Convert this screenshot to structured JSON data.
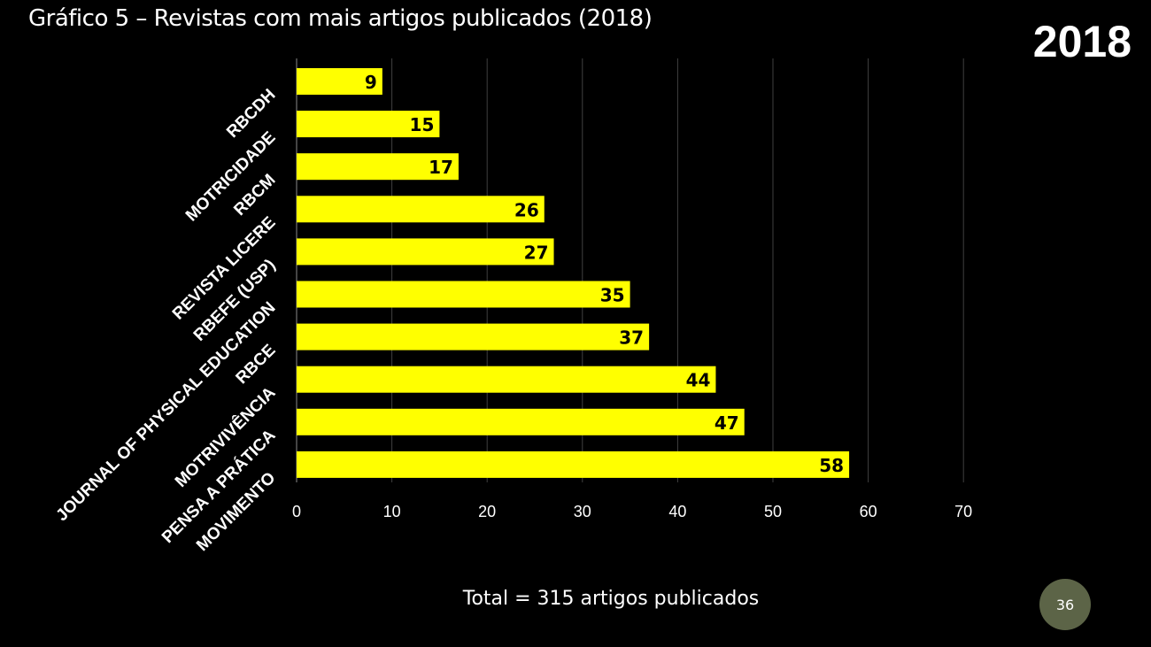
{
  "slide": {
    "title": "Gráfico 5 – Revistas com mais artigos publicados (2018)",
    "year_badge": "2018",
    "total_note": "Total = 315 artigos publicados",
    "page_number": "36"
  },
  "colors": {
    "background": "#000000",
    "bar": "#ffff00",
    "bar_label": "#000000",
    "text": "#ffffff",
    "gridline": "#404040",
    "page_badge": "#5c6447"
  },
  "chart_data": {
    "type": "bar",
    "orientation": "horizontal",
    "title": "Gráfico 5 – Revistas com mais artigos publicados (2018)",
    "categories": [
      "RBCDH",
      "MOTRICIDADE",
      "RBCM",
      "REVISTA LICERE",
      "RBEFE (USP)",
      "JOURNAL OF PHYSICAL EDUCATION",
      "RBCE",
      "MOTRIVIVÊNCIA",
      "PENSA A PRÁTICA",
      "MOVIMENTO"
    ],
    "values": [
      9,
      15,
      17,
      26,
      27,
      35,
      37,
      44,
      47,
      58
    ],
    "data_labels": [
      "9",
      "15",
      "17",
      "26",
      "27",
      "35",
      "37",
      "44",
      "47",
      "58"
    ],
    "xlim": [
      0,
      70
    ],
    "x_ticks": [
      0,
      10,
      20,
      30,
      40,
      50,
      60,
      70
    ],
    "x_tick_labels": [
      "0",
      "10",
      "20",
      "30",
      "40",
      "50",
      "60",
      "70"
    ],
    "xlabel": "",
    "ylabel": "",
    "grid": true,
    "legend": "none"
  }
}
